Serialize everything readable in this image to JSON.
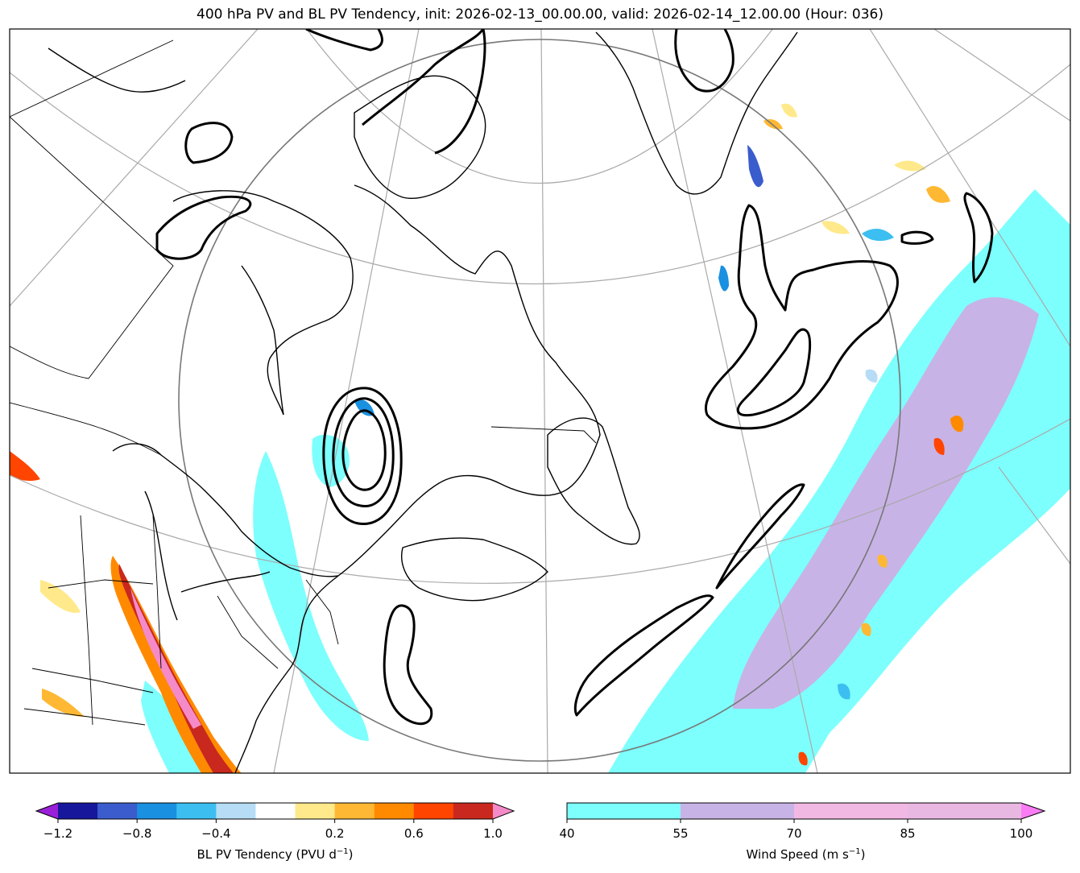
{
  "title": "400 hPa PV and BL PV Tendency, init: 2026-02-13_00.00.00, valid: 2026-02-14_12.00.00 (Hour: 036)",
  "pv_colorbar": {
    "label_main": "BL PV Tendency (PVU d",
    "label_exp": "−1",
    "label_close": ")",
    "ticks": [
      "−1.2",
      "−0.8",
      "−0.4",
      "0.2",
      "0.6",
      "1.0"
    ],
    "colors": [
      "#9a1fd8",
      "#17179c",
      "#3a5ccc",
      "#1a90e0",
      "#3cbff0",
      "#b6dcf6",
      "#ffffff",
      "#ffe98a",
      "#ffb833",
      "#ff8a00",
      "#ff4500",
      "#c8281e",
      "#f58ac8"
    ]
  },
  "wind_colorbar": {
    "label_main": "Wind Speed (m s",
    "label_exp": "−1",
    "label_close": ")",
    "ticks": [
      "40",
      "55",
      "70",
      "85",
      "100"
    ],
    "colors": [
      "#7dfffd",
      "#c8b3e6",
      "#f2b8e4",
      "#e9b8e2",
      "#fa7cf4"
    ]
  }
}
